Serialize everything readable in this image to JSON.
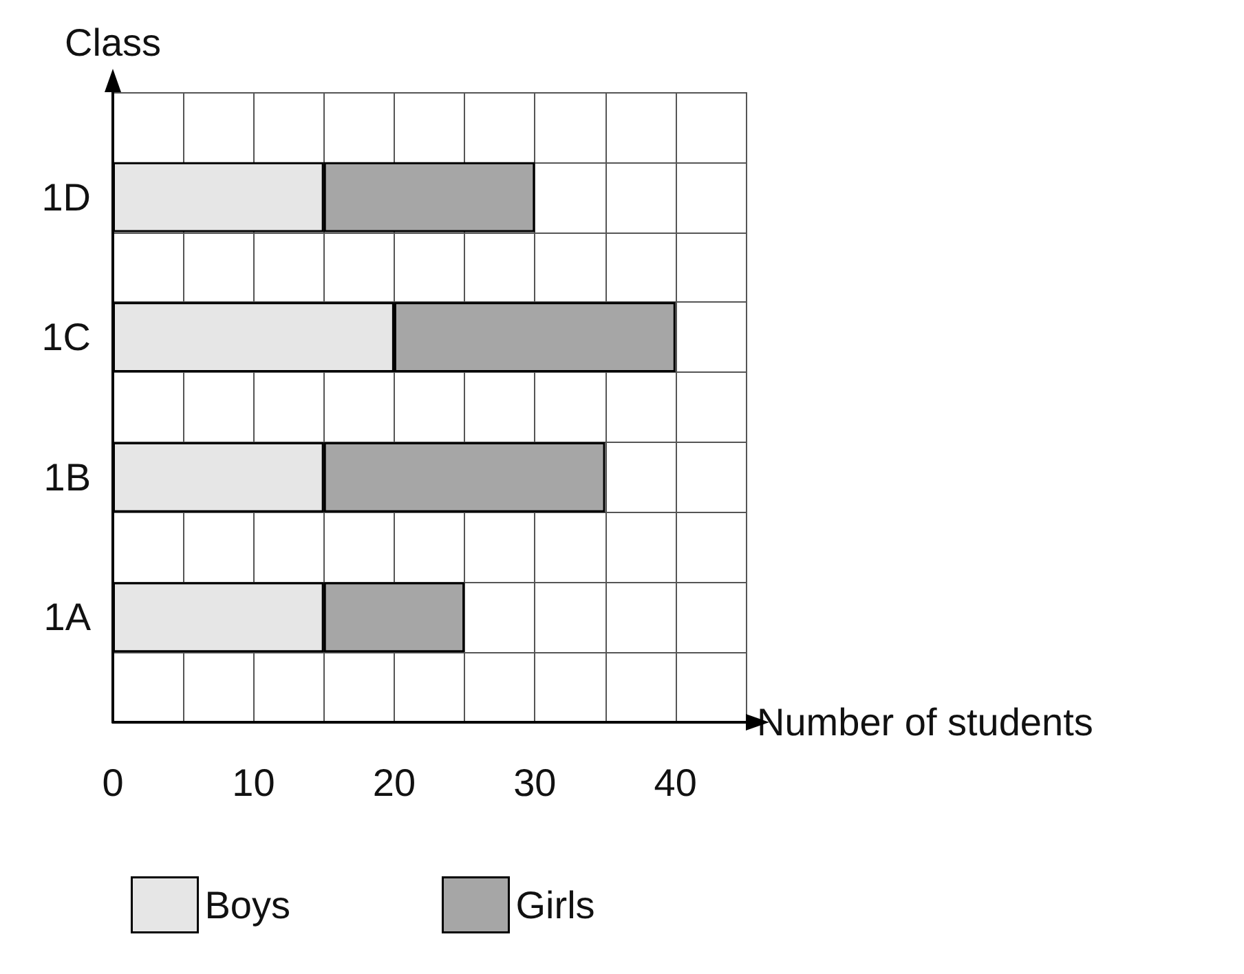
{
  "chart_data": {
    "type": "bar",
    "orientation": "horizontal",
    "stacked": true,
    "categories": [
      null,
      "1D",
      null,
      "1C",
      null,
      "1B",
      null,
      "1A",
      null
    ],
    "series": [
      {
        "name": "Boys",
        "color": "#e6e6e6",
        "values": [
          null,
          15,
          null,
          20,
          null,
          15,
          null,
          15,
          null
        ]
      },
      {
        "name": "Girls",
        "color": "#a6a6a6",
        "values": [
          null,
          15,
          null,
          20,
          null,
          20,
          null,
          10,
          null
        ]
      }
    ],
    "xlabel": "Number of students",
    "ylabel": "Class",
    "xlim": [
      0,
      45
    ],
    "xticks": [
      0,
      {
        "value": 5,
        "label": null
      },
      10,
      {
        "value": 15,
        "label": null
      },
      20,
      {
        "value": 25,
        "label": null
      },
      30,
      {
        "value": 35,
        "label": null
      },
      40,
      {
        "value": 45,
        "label": null
      }
    ],
    "grid": true,
    "legend": "bottom"
  }
}
